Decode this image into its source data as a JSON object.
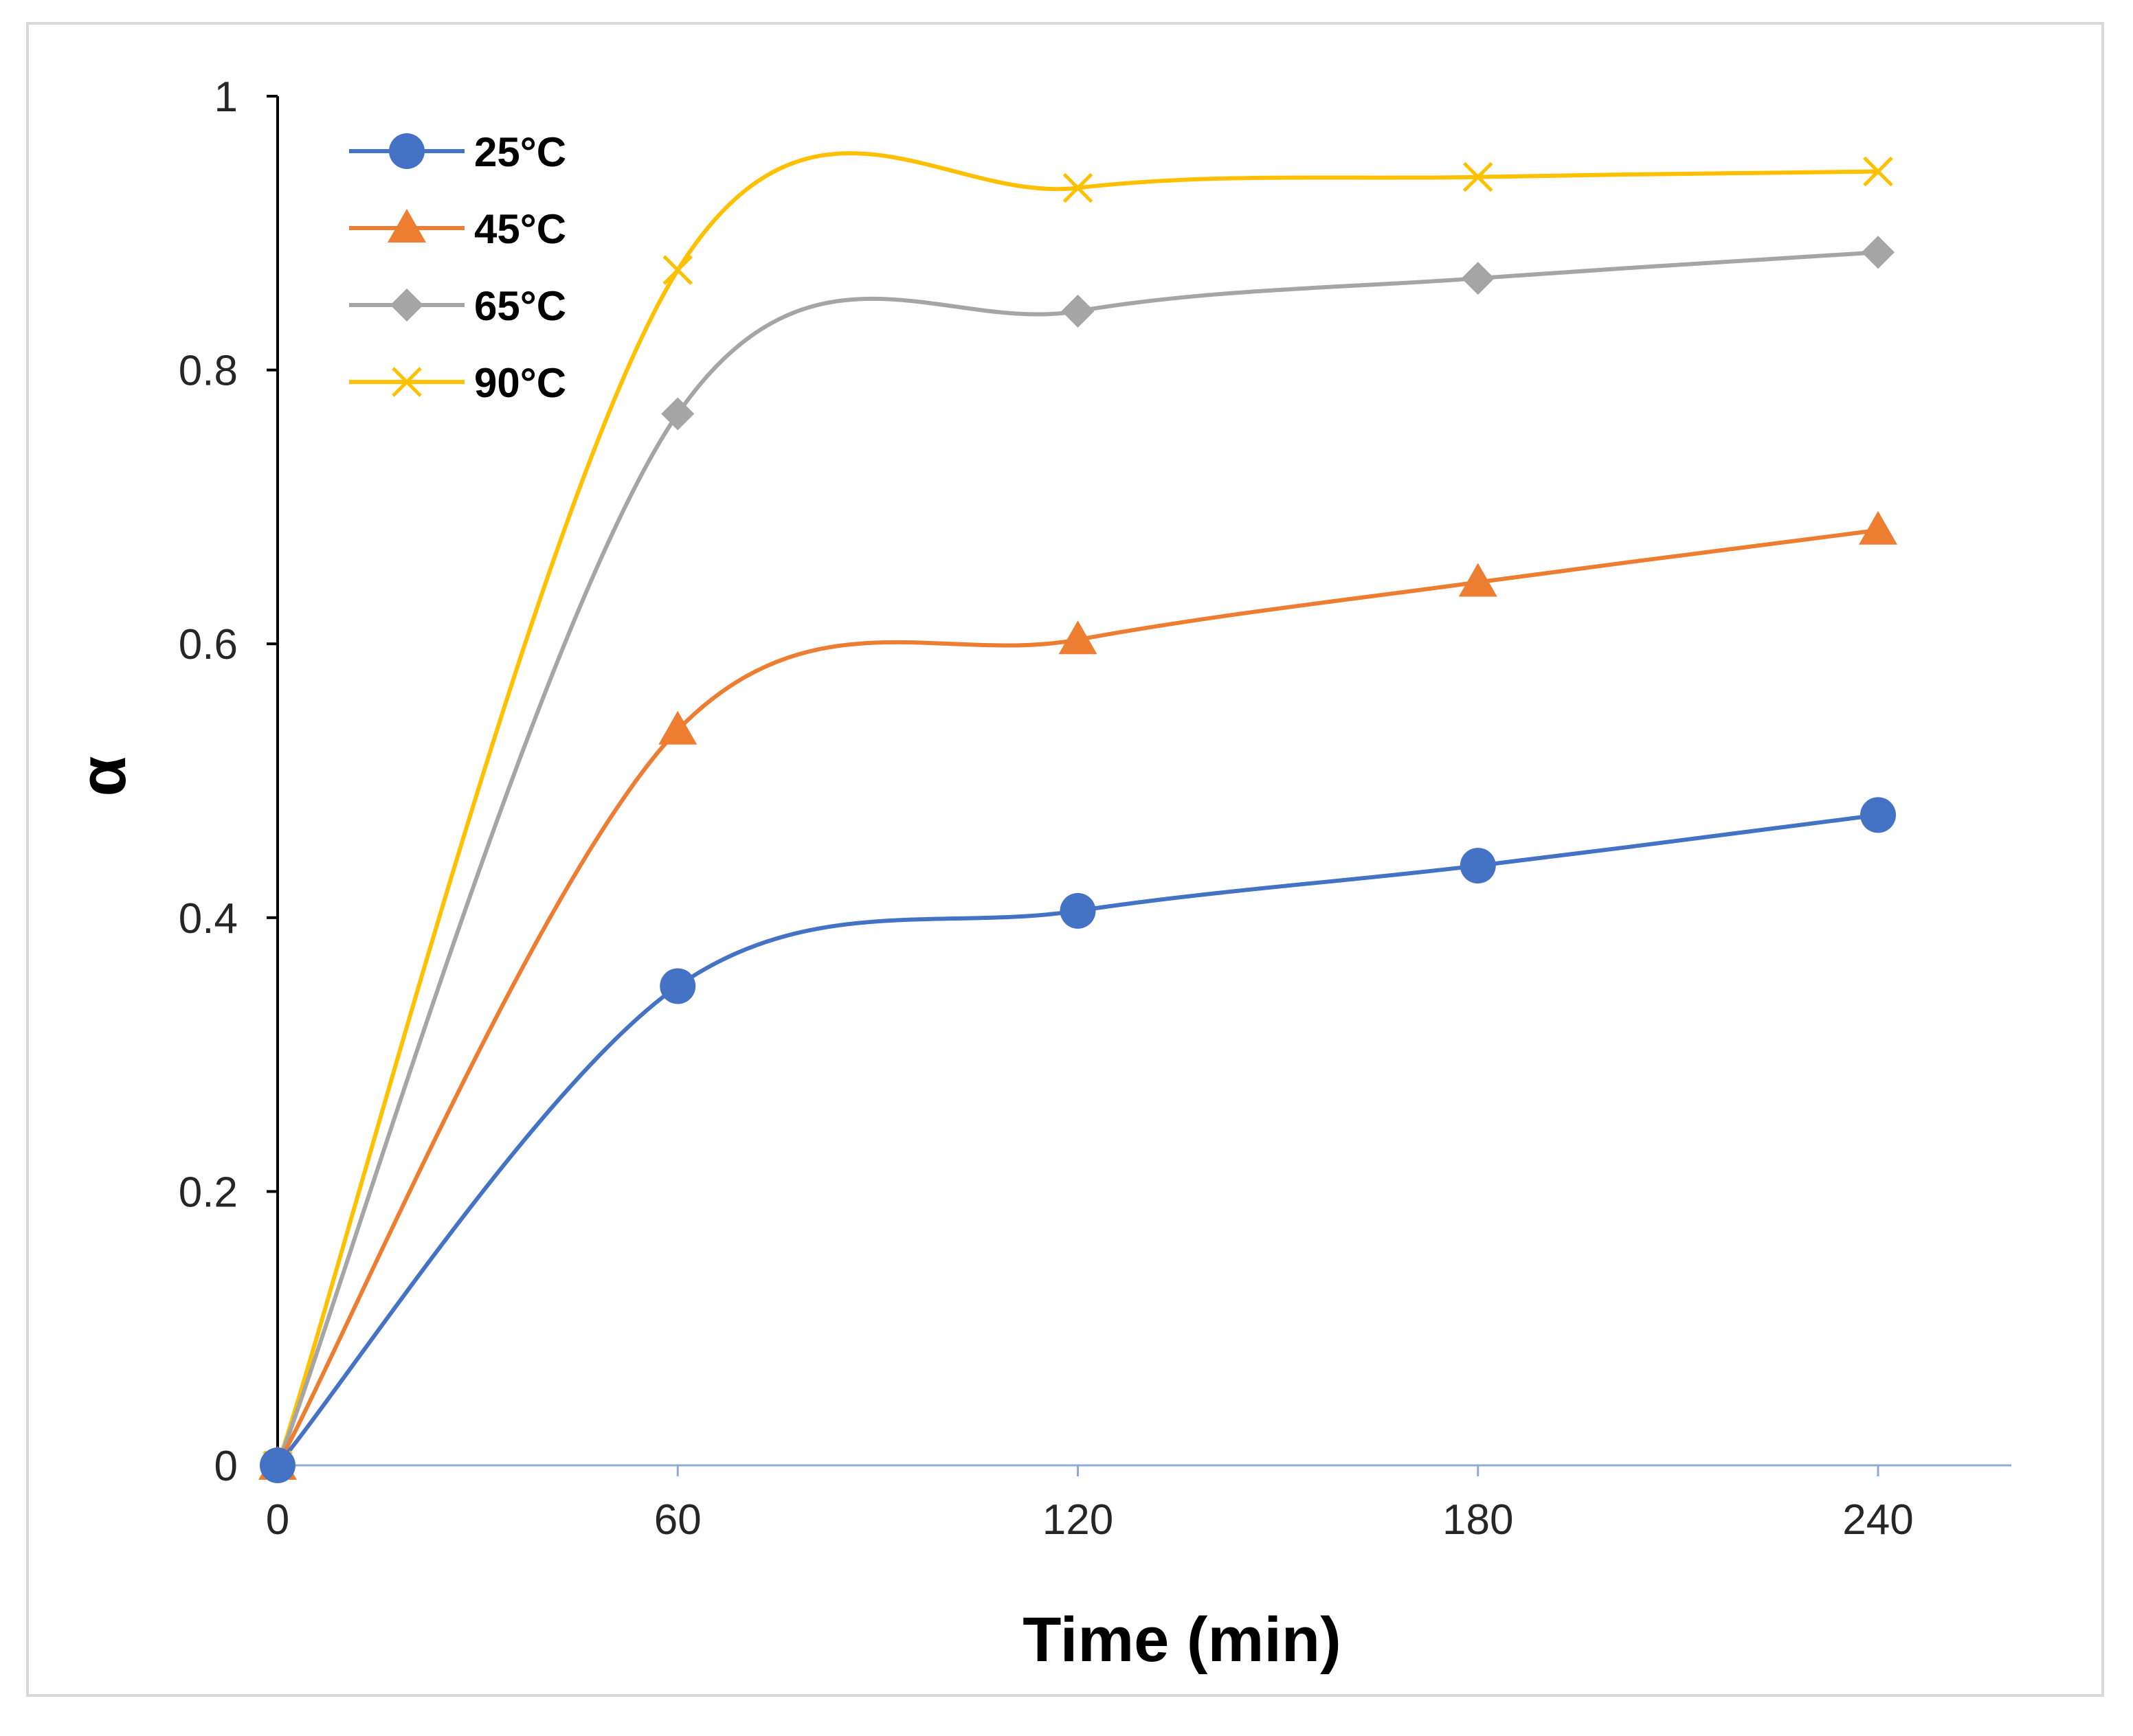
{
  "chart_data": {
    "type": "line",
    "title": "",
    "xlabel": "Time (min)",
    "ylabel": "α",
    "x": [
      0,
      60,
      120,
      180,
      240
    ],
    "xlim": [
      0,
      260
    ],
    "ylim": [
      0,
      1
    ],
    "xticks": [
      0,
      60,
      120,
      180,
      240
    ],
    "yticks": [
      0,
      0.2,
      0.4,
      0.6,
      0.8,
      1
    ],
    "ytick_labels": [
      "0",
      "0.2",
      "0.4",
      "0.6",
      "0.8",
      "1"
    ],
    "grid": false,
    "smooth": true,
    "legend_position": "top-left",
    "series": [
      {
        "name": "25°C",
        "values": [
          0,
          0.35,
          0.405,
          0.438,
          0.475
        ],
        "color": "#4472C4",
        "marker": "circle"
      },
      {
        "name": "45°C",
        "values": [
          0,
          0.537,
          0.603,
          0.645,
          0.683
        ],
        "color": "#ED7D31",
        "marker": "triangle"
      },
      {
        "name": "65°C",
        "values": [
          0,
          0.768,
          0.843,
          0.867,
          0.886
        ],
        "color": "#A5A5A5",
        "marker": "diamond"
      },
      {
        "name": "90°C",
        "values": [
          0,
          0.873,
          0.933,
          0.941,
          0.945
        ],
        "color": "#FFC000",
        "marker": "x"
      }
    ]
  }
}
